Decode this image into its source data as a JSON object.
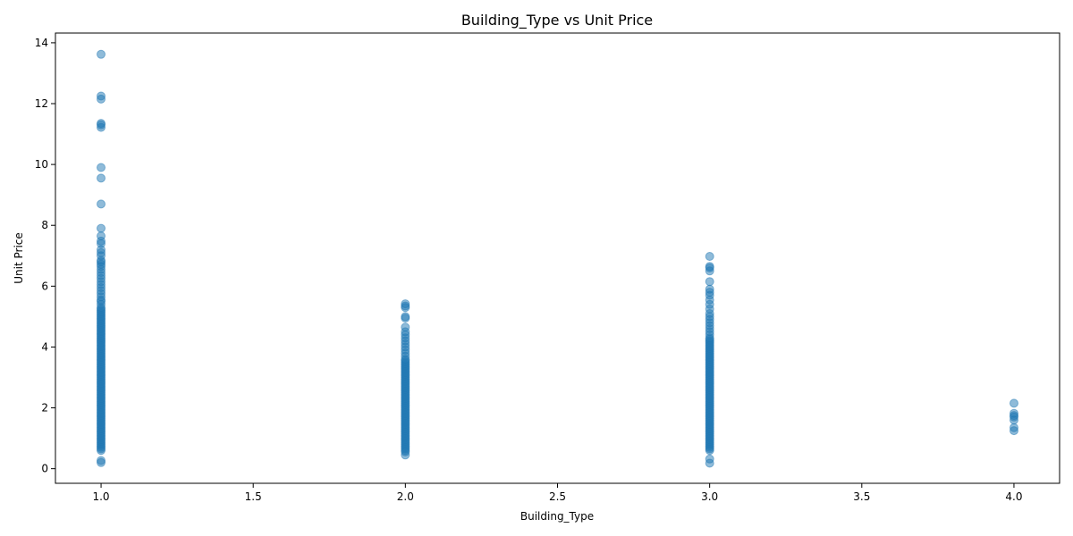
{
  "chart_data": {
    "type": "scatter",
    "title": "Building_Type vs Unit Price",
    "xlabel": "Building_Type",
    "ylabel": "Unit Price",
    "xlim": [
      0.85,
      4.15
    ],
    "ylim": [
      -0.48,
      14.32
    ],
    "x_ticks": [
      "1.0",
      "1.5",
      "2.0",
      "2.5",
      "3.0",
      "3.5",
      "4.0"
    ],
    "y_ticks": [
      "0",
      "2",
      "4",
      "6",
      "8",
      "10",
      "12",
      "14"
    ],
    "grid": false,
    "marker_color": "#1f77b4",
    "marker_alpha": 0.5,
    "series": [
      {
        "x": 1.0,
        "y": [
          0.2,
          0.27,
          0.6,
          0.65,
          0.7,
          0.75,
          0.8,
          0.85,
          0.9,
          0.95,
          1.0,
          1.05,
          1.1,
          1.15,
          1.2,
          1.25,
          1.3,
          1.35,
          1.4,
          1.45,
          1.5,
          1.55,
          1.6,
          1.65,
          1.7,
          1.75,
          1.8,
          1.85,
          1.9,
          1.95,
          2.0,
          2.05,
          2.1,
          2.15,
          2.2,
          2.25,
          2.3,
          2.35,
          2.4,
          2.45,
          2.5,
          2.55,
          2.6,
          2.65,
          2.7,
          2.75,
          2.8,
          2.85,
          2.9,
          2.95,
          3.0,
          3.05,
          3.1,
          3.15,
          3.2,
          3.25,
          3.3,
          3.35,
          3.4,
          3.45,
          3.5,
          3.55,
          3.6,
          3.65,
          3.7,
          3.75,
          3.8,
          3.85,
          3.9,
          3.95,
          4.0,
          4.05,
          4.1,
          4.15,
          4.2,
          4.25,
          4.3,
          4.35,
          4.4,
          4.45,
          4.5,
          4.55,
          4.6,
          4.65,
          4.7,
          4.75,
          4.8,
          4.85,
          4.9,
          4.95,
          5.0,
          5.05,
          5.1,
          5.15,
          5.2,
          5.25,
          5.3,
          5.4,
          5.5,
          5.55,
          5.65,
          5.75,
          5.85,
          5.95,
          6.05,
          6.15,
          6.25,
          6.35,
          6.45,
          6.55,
          6.65,
          6.72,
          6.8,
          6.85,
          7.0,
          7.1,
          7.2,
          7.4,
          7.48,
          7.65,
          7.9,
          8.7,
          9.55,
          9.9,
          11.22,
          11.3,
          11.35,
          12.15,
          12.25,
          13.62
        ]
      },
      {
        "x": 2.0,
        "y": [
          0.45,
          0.55,
          0.6,
          0.65,
          0.7,
          0.75,
          0.8,
          0.85,
          0.9,
          0.95,
          1.0,
          1.05,
          1.1,
          1.15,
          1.2,
          1.25,
          1.3,
          1.35,
          1.4,
          1.45,
          1.5,
          1.55,
          1.6,
          1.65,
          1.7,
          1.75,
          1.8,
          1.85,
          1.9,
          1.95,
          2.0,
          2.05,
          2.1,
          2.15,
          2.2,
          2.25,
          2.3,
          2.35,
          2.4,
          2.45,
          2.5,
          2.55,
          2.6,
          2.65,
          2.7,
          2.75,
          2.8,
          2.85,
          2.9,
          2.95,
          3.0,
          3.05,
          3.1,
          3.15,
          3.2,
          3.25,
          3.3,
          3.35,
          3.4,
          3.45,
          3.5,
          3.55,
          3.6,
          3.7,
          3.8,
          3.9,
          4.0,
          4.1,
          4.2,
          4.3,
          4.4,
          4.5,
          4.65,
          4.95,
          5.0,
          5.3,
          5.35,
          5.42
        ]
      },
      {
        "x": 3.0,
        "y": [
          0.18,
          0.32,
          0.6,
          0.65,
          0.7,
          0.75,
          0.8,
          0.85,
          0.9,
          0.95,
          1.0,
          1.05,
          1.1,
          1.15,
          1.2,
          1.25,
          1.3,
          1.35,
          1.4,
          1.45,
          1.5,
          1.55,
          1.6,
          1.65,
          1.7,
          1.75,
          1.8,
          1.85,
          1.9,
          1.95,
          2.0,
          2.05,
          2.1,
          2.15,
          2.2,
          2.25,
          2.3,
          2.35,
          2.4,
          2.45,
          2.5,
          2.55,
          2.6,
          2.65,
          2.7,
          2.75,
          2.8,
          2.85,
          2.9,
          2.95,
          3.0,
          3.05,
          3.1,
          3.15,
          3.2,
          3.25,
          3.3,
          3.35,
          3.4,
          3.45,
          3.5,
          3.55,
          3.6,
          3.65,
          3.7,
          3.75,
          3.8,
          3.85,
          3.9,
          3.95,
          4.0,
          4.05,
          4.1,
          4.15,
          4.2,
          4.25,
          4.3,
          4.4,
          4.5,
          4.6,
          4.7,
          4.8,
          4.9,
          5.0,
          5.1,
          5.25,
          5.4,
          5.55,
          5.7,
          5.8,
          5.9,
          6.15,
          6.5,
          6.6,
          6.65,
          6.98
        ]
      },
      {
        "x": 4.0,
        "y": [
          1.25,
          1.35,
          1.6,
          1.7,
          1.75,
          1.82,
          2.15
        ]
      }
    ]
  }
}
